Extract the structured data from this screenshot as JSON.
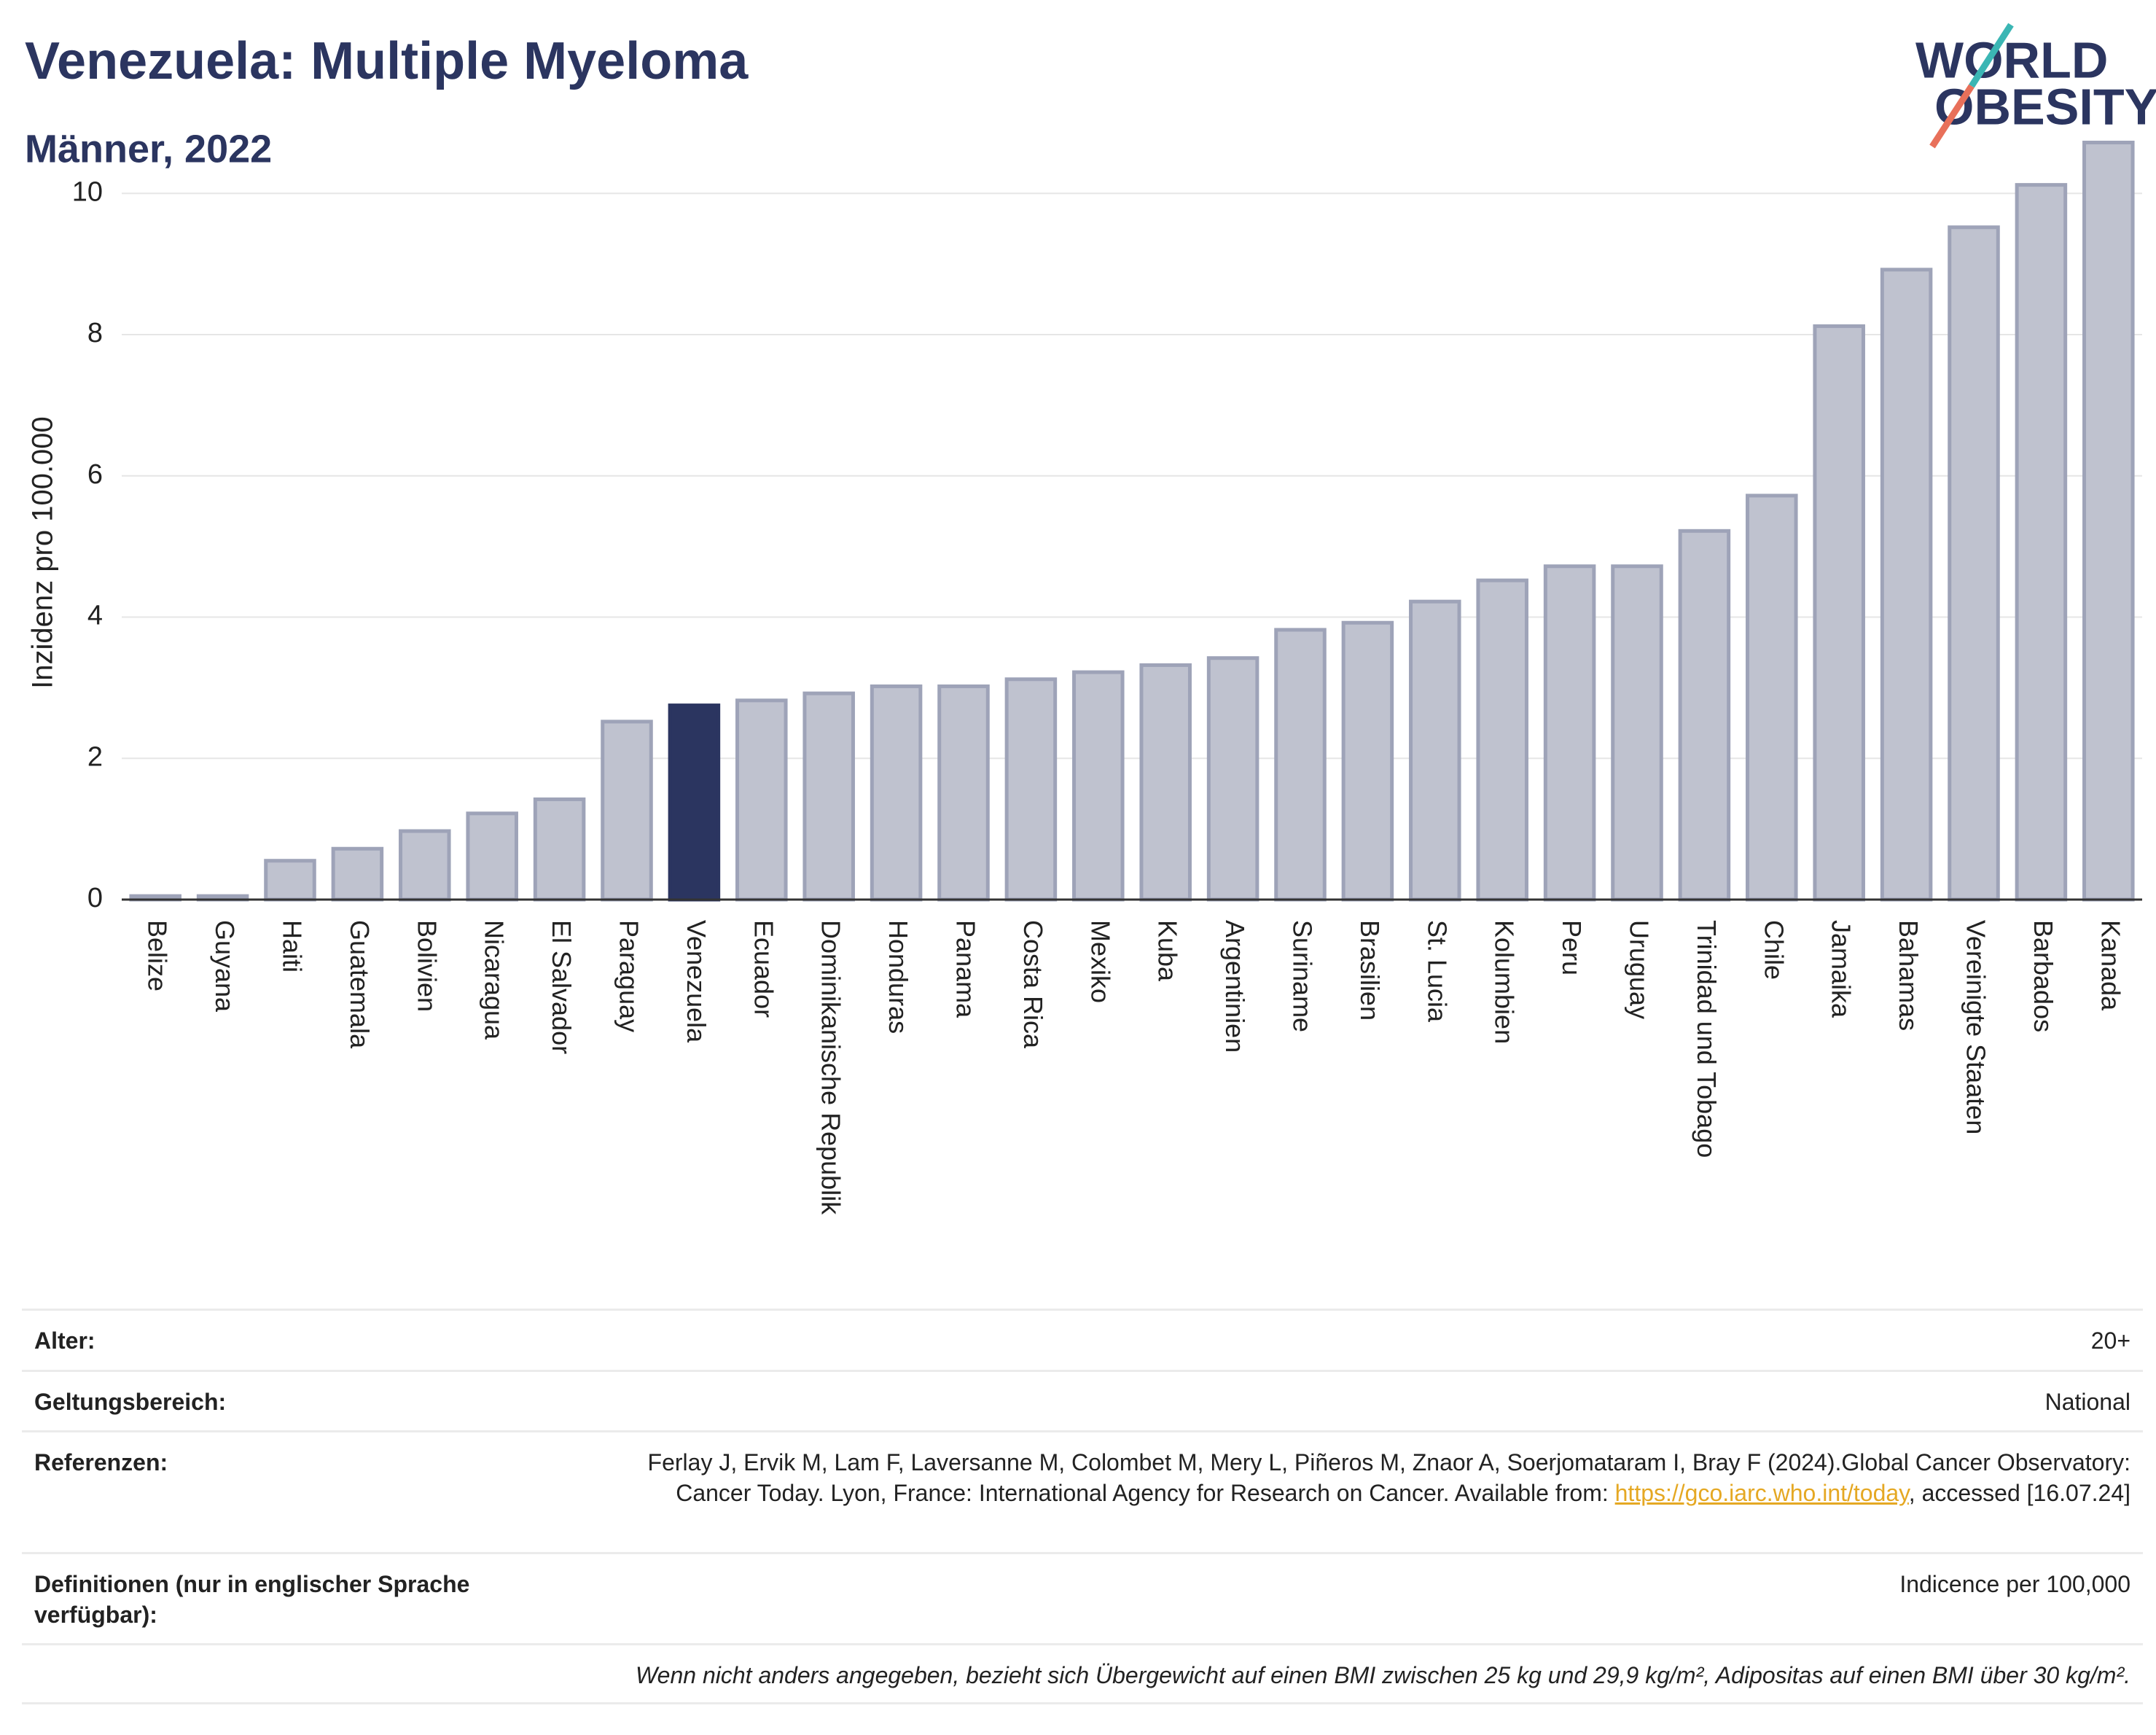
{
  "chart_data": {
    "type": "bar",
    "title": "Venezuela: Multiple Myeloma",
    "subtitle": "Männer, 2022",
    "y_label": "Inzidenz pro 100.000",
    "categories": [
      "Belize",
      "Guyana",
      "Haiti",
      "Guatemala",
      "Bolivien",
      "Nicaragua",
      "El Salvador",
      "Paraguay",
      "Venezuela",
      "Ecuador",
      "Dominikanische Republik",
      "Honduras",
      "Panama",
      "Costa Rica",
      "Mexiko",
      "Kuba",
      "Argentinien",
      "Suriname",
      "Brasilien",
      "St. Lucia",
      "Kolumbien",
      "Peru",
      "Uruguay",
      "Trinidad und Tobago",
      "Chile",
      "Jamaika",
      "Bahamas",
      "Vereinigte Staaten",
      "Barbados",
      "Kanada"
    ],
    "values": [
      0.05,
      0.05,
      0.55,
      0.72,
      0.97,
      1.22,
      1.42,
      2.52,
      2.75,
      2.82,
      2.92,
      3.02,
      3.02,
      3.12,
      3.22,
      3.32,
      3.42,
      3.82,
      3.92,
      4.22,
      4.52,
      4.72,
      4.72,
      5.22,
      5.72,
      8.12,
      8.92,
      9.52,
      10.12,
      10.72
    ],
    "colors": [
      "#bfc2cf",
      "#bfc2cf",
      "#bfc2cf",
      "#bfc2cf",
      "#bfc2cf",
      "#bfc2cf",
      "#bfc2cf",
      "#bfc2cf",
      "#2b3560",
      "#bfc2cf",
      "#bfc2cf",
      "#bfc2cf",
      "#bfc2cf",
      "#bfc2cf",
      "#bfc2cf",
      "#bfc2cf",
      "#bfc2cf",
      "#bfc2cf",
      "#bfc2cf",
      "#bfc2cf",
      "#bfc2cf",
      "#bfc2cf",
      "#bfc2cf",
      "#bfc2cf",
      "#bfc2cf",
      "#bfc2cf",
      "#bfc2cf",
      "#bfc2cf",
      "#bfc2cf",
      "#bfc2cf"
    ],
    "ylim": [
      0,
      11.2
    ],
    "yticks": [
      0,
      2,
      4,
      6,
      8,
      10
    ],
    "grid": true
  },
  "logo": {
    "line1": "WORLD",
    "line2": "OBESITY"
  },
  "info": {
    "age_label": "Alter:",
    "age": "20+",
    "scope_label": "Geltungsbereich:",
    "scope": "National",
    "ref_label": "Referenzen:",
    "ref_text": "Ferlay J, Ervik M, Lam F, Laversanne M, Colombet M, Mery L, Piñeros M, Znaor A, Soerjomataram I, Bray F (2024).Global Cancer Observatory: Cancer Today. Lyon, France: International Agency for Research on Cancer. Available from: ",
    "ref_link": "https://gco.iarc.who.int/today",
    "ref_tail": ", accessed [16.07.24]",
    "def_label": "Definitionen (nur in englischer Sprache verfügbar):",
    "def": "Indicence per 100,000",
    "note": "Wenn nicht anders angegeben, bezieht sich Übergewicht auf einen BMI zwischen 25 kg und 29,9 kg/m², Adipositas auf einen BMI über 30 kg/m²."
  }
}
